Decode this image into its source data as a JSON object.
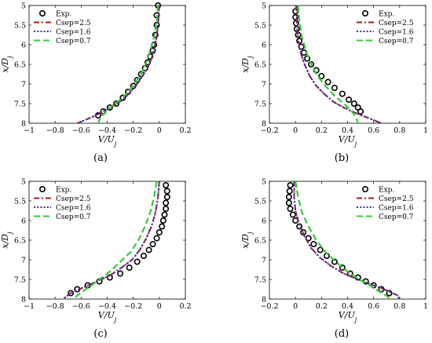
{
  "figure": {
    "captions": [
      "(a)",
      "(b)",
      "(c)",
      "(d)"
    ]
  },
  "chart_data": [
    {
      "panel": "(a)",
      "type": "line",
      "xlabel": "V/U_j",
      "ylabel": "x/D_j",
      "xlim": [
        -1,
        0.2
      ],
      "ylim": [
        5,
        8
      ],
      "y_reversed": true,
      "xticks": [
        -1,
        -0.8,
        -0.6,
        -0.4,
        -0.2,
        0,
        0.2
      ],
      "yticks": [
        5,
        5.5,
        6,
        6.5,
        7,
        7.5,
        8
      ],
      "legend": {
        "position": "top-left"
      },
      "series": [
        {
          "name": "Exp.",
          "style": "circle-markers",
          "color": "#000000",
          "x": [
            -0.01,
            -0.02,
            -0.02,
            -0.03,
            -0.04,
            -0.05,
            -0.07,
            -0.09,
            -0.11,
            -0.14,
            -0.17,
            -0.2,
            -0.24,
            -0.28,
            -0.33,
            -0.38,
            -0.43,
            -0.47
          ],
          "y": [
            5.0,
            5.25,
            5.5,
            5.75,
            6.0,
            6.15,
            6.3,
            6.45,
            6.6,
            6.75,
            6.9,
            7.05,
            7.2,
            7.35,
            7.5,
            7.6,
            7.7,
            7.8
          ]
        },
        {
          "name": "Csep=2.5",
          "style": "dash-dot",
          "color": "#b01a1a",
          "x": [
            0.0,
            -0.01,
            -0.02,
            -0.04,
            -0.06,
            -0.09,
            -0.13,
            -0.17,
            -0.22,
            -0.28,
            -0.35,
            -0.43,
            -0.52,
            -0.63
          ],
          "y": [
            5.0,
            5.5,
            5.8,
            6.1,
            6.35,
            6.6,
            6.8,
            7.0,
            7.2,
            7.4,
            7.55,
            7.7,
            7.85,
            8.0
          ]
        },
        {
          "name": "Csep=1.6",
          "style": "dotted",
          "color": "#3a2fb0",
          "x": [
            0.0,
            -0.01,
            -0.02,
            -0.04,
            -0.06,
            -0.09,
            -0.13,
            -0.17,
            -0.22,
            -0.28,
            -0.35,
            -0.43,
            -0.52,
            -0.63
          ],
          "y": [
            5.0,
            5.5,
            5.8,
            6.1,
            6.35,
            6.6,
            6.8,
            7.0,
            7.2,
            7.4,
            7.55,
            7.7,
            7.85,
            8.0
          ]
        },
        {
          "name": "Csep=0.7",
          "style": "dashed",
          "color": "#33cc33",
          "x": [
            -0.01,
            -0.02,
            -0.04,
            -0.07,
            -0.1,
            -0.14,
            -0.19,
            -0.24,
            -0.3,
            -0.36,
            -0.41,
            -0.45,
            -0.47
          ],
          "y": [
            5.0,
            5.4,
            5.8,
            6.15,
            6.45,
            6.75,
            7.0,
            7.2,
            7.4,
            7.55,
            7.7,
            7.85,
            8.0
          ]
        }
      ]
    },
    {
      "panel": "(b)",
      "type": "line",
      "xlabel": "V/U_j",
      "ylabel": "x/D_j",
      "xlim": [
        -0.2,
        1
      ],
      "ylim": [
        5,
        8
      ],
      "y_reversed": true,
      "xticks": [
        -0.2,
        0,
        0.2,
        0.4,
        0.6,
        0.8,
        1
      ],
      "yticks": [
        5,
        5.5,
        6,
        6.5,
        7,
        7.5,
        8
      ],
      "legend": {
        "position": "top-right"
      },
      "series": [
        {
          "name": "Exp.",
          "style": "circle-markers",
          "color": "#000000",
          "x": [
            0.0,
            0.0,
            0.005,
            0.01,
            0.02,
            0.03,
            0.045,
            0.065,
            0.09,
            0.12,
            0.16,
            0.2,
            0.25,
            0.3,
            0.36,
            0.41,
            0.45,
            0.48,
            0.5
          ],
          "y": [
            5.15,
            5.3,
            5.45,
            5.6,
            5.75,
            5.9,
            6.05,
            6.2,
            6.35,
            6.5,
            6.65,
            6.8,
            6.95,
            7.1,
            7.25,
            7.4,
            7.5,
            7.6,
            7.7
          ]
        },
        {
          "name": "Csep=2.5",
          "style": "dash-dot",
          "color": "#b01a1a",
          "x": [
            0.01,
            0.01,
            0.02,
            0.04,
            0.07,
            0.11,
            0.16,
            0.22,
            0.29,
            0.37,
            0.47,
            0.57,
            0.66
          ],
          "y": [
            5.0,
            5.5,
            5.85,
            6.2,
            6.5,
            6.8,
            7.05,
            7.25,
            7.45,
            7.6,
            7.75,
            7.88,
            8.0
          ]
        },
        {
          "name": "Csep=1.6",
          "style": "dotted",
          "color": "#3a2fb0",
          "x": [
            0.01,
            0.01,
            0.02,
            0.04,
            0.07,
            0.11,
            0.16,
            0.22,
            0.29,
            0.37,
            0.47,
            0.57,
            0.66
          ],
          "y": [
            5.0,
            5.5,
            5.85,
            6.2,
            6.5,
            6.8,
            7.05,
            7.25,
            7.45,
            7.6,
            7.75,
            7.88,
            8.0
          ]
        },
        {
          "name": "Csep=0.7",
          "style": "dashed",
          "color": "#33cc33",
          "x": [
            0.02,
            0.03,
            0.05,
            0.08,
            0.12,
            0.17,
            0.23,
            0.3,
            0.37,
            0.42,
            0.46,
            0.48
          ],
          "y": [
            5.0,
            5.4,
            5.8,
            6.15,
            6.5,
            6.8,
            7.05,
            7.3,
            7.5,
            7.65,
            7.82,
            8.0
          ]
        }
      ]
    },
    {
      "panel": "(c)",
      "type": "line",
      "xlabel": "V/U_j",
      "ylabel": "x/D_j",
      "xlim": [
        -1,
        0.2
      ],
      "ylim": [
        5,
        8
      ],
      "y_reversed": true,
      "xticks": [
        -1,
        -0.8,
        -0.6,
        -0.4,
        -0.2,
        0,
        0.2
      ],
      "yticks": [
        5,
        5.5,
        6,
        6.5,
        7,
        7.5,
        8
      ],
      "legend": {
        "position": "top-left"
      },
      "series": [
        {
          "name": "Exp.",
          "style": "circle-markers",
          "color": "#000000",
          "x": [
            0.05,
            0.06,
            0.06,
            0.05,
            0.05,
            0.04,
            0.03,
            0.02,
            0.0,
            -0.02,
            -0.05,
            -0.08,
            -0.12,
            -0.17,
            -0.23,
            -0.3,
            -0.38,
            -0.46,
            -0.55,
            -0.63,
            -0.68
          ],
          "y": [
            5.1,
            5.25,
            5.4,
            5.55,
            5.7,
            5.85,
            6.0,
            6.15,
            6.3,
            6.45,
            6.6,
            6.75,
            6.9,
            7.05,
            7.2,
            7.35,
            7.45,
            7.55,
            7.65,
            7.75,
            7.85
          ]
        },
        {
          "name": "Csep=2.5",
          "style": "dash-dot",
          "color": "#b01a1a",
          "x": [
            0.0,
            -0.01,
            -0.03,
            -0.06,
            -0.1,
            -0.15,
            -0.21,
            -0.29,
            -0.38,
            -0.48,
            -0.58,
            -0.68,
            -0.74
          ],
          "y": [
            5.0,
            5.4,
            5.8,
            6.15,
            6.45,
            6.75,
            7.0,
            7.2,
            7.4,
            7.55,
            7.7,
            7.85,
            8.0
          ]
        },
        {
          "name": "Csep=1.6",
          "style": "dotted",
          "color": "#3a2fb0",
          "x": [
            0.0,
            -0.01,
            -0.03,
            -0.06,
            -0.1,
            -0.15,
            -0.21,
            -0.29,
            -0.38,
            -0.48,
            -0.58,
            -0.68,
            -0.74
          ],
          "y": [
            5.0,
            5.4,
            5.8,
            6.15,
            6.45,
            6.75,
            7.0,
            7.2,
            7.4,
            7.55,
            7.7,
            7.85,
            8.0
          ]
        },
        {
          "name": "Csep=0.7",
          "style": "dashed",
          "color": "#33cc33",
          "x": [
            -0.02,
            -0.04,
            -0.07,
            -0.11,
            -0.16,
            -0.22,
            -0.3,
            -0.38,
            -0.46,
            -0.54,
            -0.61,
            -0.66
          ],
          "y": [
            5.0,
            5.4,
            5.8,
            6.15,
            6.5,
            6.8,
            7.05,
            7.3,
            7.5,
            7.7,
            7.85,
            8.0
          ]
        }
      ]
    },
    {
      "panel": "(d)",
      "type": "line",
      "xlabel": "V/U_j",
      "ylabel": "x/D_j",
      "xlim": [
        -0.2,
        1
      ],
      "ylim": [
        5,
        8
      ],
      "y_reversed": true,
      "xticks": [
        -0.2,
        0,
        0.2,
        0.4,
        0.6,
        0.8,
        1
      ],
      "yticks": [
        5,
        5.5,
        6,
        6.5,
        7,
        7.5,
        8
      ],
      "legend": {
        "position": "top-right"
      },
      "series": [
        {
          "name": "Exp.",
          "style": "circle-markers",
          "color": "#000000",
          "x": [
            -0.04,
            -0.045,
            -0.05,
            -0.05,
            -0.04,
            -0.02,
            0.0,
            0.03,
            0.06,
            0.1,
            0.14,
            0.19,
            0.24,
            0.3,
            0.36,
            0.42,
            0.48,
            0.54,
            0.6,
            0.66,
            0.72
          ],
          "y": [
            5.1,
            5.25,
            5.4,
            5.55,
            5.7,
            5.85,
            6.0,
            6.15,
            6.3,
            6.45,
            6.6,
            6.75,
            6.9,
            7.05,
            7.2,
            7.35,
            7.45,
            7.55,
            7.65,
            7.75,
            7.85
          ]
        },
        {
          "name": "Csep=2.5",
          "style": "dash-dot",
          "color": "#b01a1a",
          "x": [
            -0.01,
            -0.01,
            0.0,
            0.03,
            0.07,
            0.12,
            0.19,
            0.27,
            0.37,
            0.48,
            0.6,
            0.7,
            0.78,
            0.8
          ],
          "y": [
            5.0,
            5.4,
            5.75,
            6.1,
            6.4,
            6.7,
            6.95,
            7.15,
            7.35,
            7.5,
            7.65,
            7.78,
            7.9,
            8.0
          ]
        },
        {
          "name": "Csep=1.6",
          "style": "dotted",
          "color": "#3a2fb0",
          "x": [
            -0.01,
            -0.01,
            0.0,
            0.03,
            0.07,
            0.12,
            0.19,
            0.27,
            0.37,
            0.48,
            0.6,
            0.7,
            0.78,
            0.8
          ],
          "y": [
            5.0,
            5.4,
            5.75,
            6.1,
            6.4,
            6.7,
            6.95,
            7.15,
            7.35,
            7.5,
            7.65,
            7.78,
            7.9,
            8.0
          ]
        },
        {
          "name": "Csep=0.7",
          "style": "dashed",
          "color": "#33cc33",
          "x": [
            0.0,
            0.02,
            0.05,
            0.1,
            0.16,
            0.23,
            0.31,
            0.4,
            0.49,
            0.57,
            0.64,
            0.7,
            0.73
          ],
          "y": [
            5.0,
            5.4,
            5.8,
            6.15,
            6.5,
            6.8,
            7.05,
            7.3,
            7.5,
            7.65,
            7.8,
            7.92,
            8.0
          ]
        }
      ]
    }
  ]
}
